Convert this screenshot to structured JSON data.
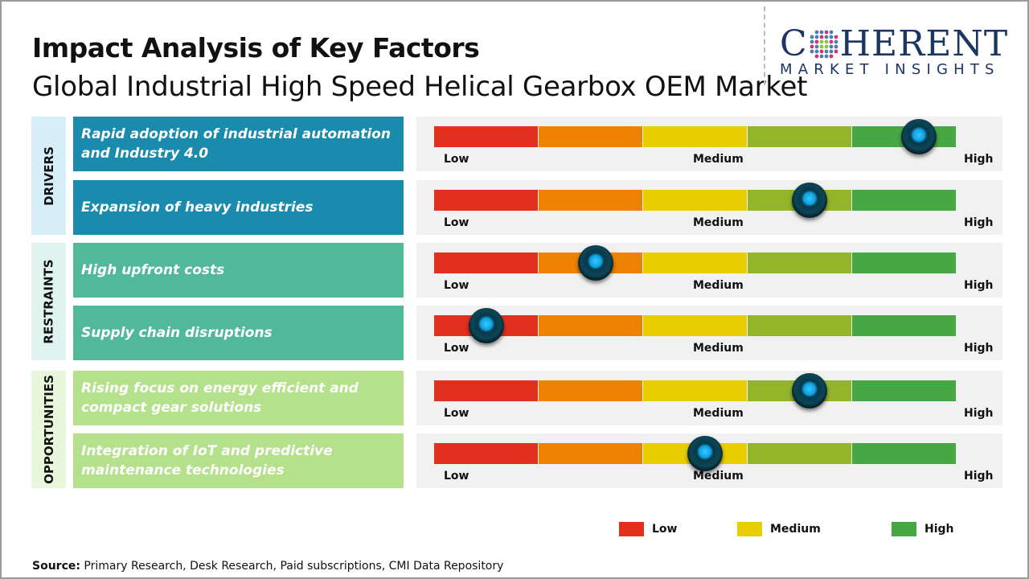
{
  "title": "Impact Analysis of Key Factors",
  "subtitle": "Global Industrial High Speed Helical Gearbox OEM Market",
  "logo": {
    "word": "COHERENT",
    "tagline": "MARKET INSIGHTS"
  },
  "chart_data": {
    "type": "gauge-table",
    "scale_labels": [
      "Low",
      "Medium",
      "High"
    ],
    "scale_colors": [
      "#e2301f",
      "#ef8200",
      "#e8cd00",
      "#93b52a",
      "#46a843"
    ],
    "categories": [
      {
        "name": "DRIVERS",
        "color": "#1a8aad",
        "bg": "#d5eef8",
        "factors": [
          {
            "label": "Rapid adoption of industrial automation and Industry 4.0",
            "impact": 0.93
          },
          {
            "label": "Expansion of heavy industries",
            "impact": 0.72
          }
        ]
      },
      {
        "name": "RESTRAINTS",
        "color": "#52b89a",
        "bg": "#dff4ef",
        "factors": [
          {
            "label": "High upfront costs",
            "impact": 0.31
          },
          {
            "label": "Supply chain disruptions",
            "impact": 0.1
          }
        ]
      },
      {
        "name": "OPPORTUNITIES",
        "color": "#b5e08c",
        "bg": "#e8f6dc",
        "factors": [
          {
            "label": "Rising focus on energy efficient and compact gear solutions",
            "impact": 0.72
          },
          {
            "label": "Integration of IoT and predictive maintenance technologies",
            "impact": 0.52
          }
        ]
      }
    ],
    "legend": [
      {
        "label": "Low",
        "color": "#e2301f"
      },
      {
        "label": "Medium",
        "color": "#e8cd00"
      },
      {
        "label": "High",
        "color": "#46a843"
      }
    ],
    "legend_position": "bottom-right"
  },
  "source": {
    "label": "Source:",
    "text": " Primary Research, Desk Research, Paid subscriptions, CMI Data Repository"
  }
}
